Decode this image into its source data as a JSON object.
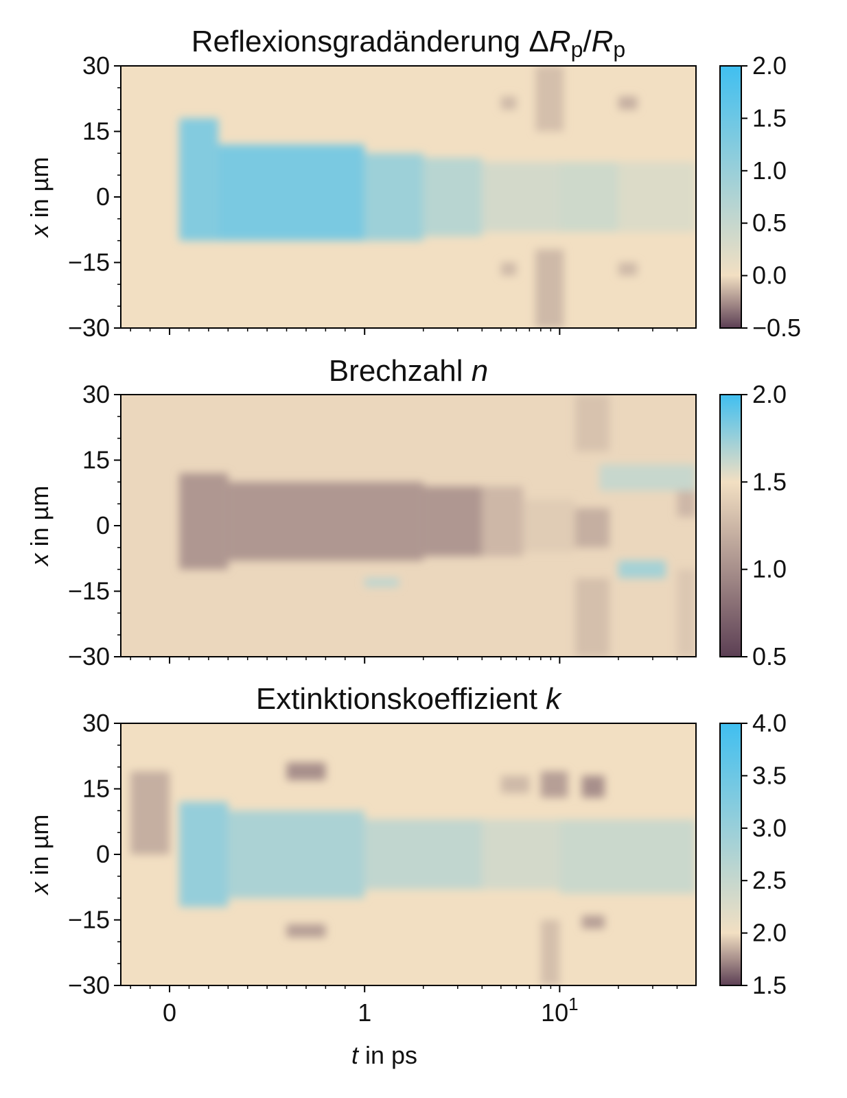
{
  "chart_data": [
    {
      "type": "heatmap",
      "title_prefix": "Reflexionsgradänderung Δ",
      "title_var": "R",
      "title_sub": "p",
      "title_slash": "/",
      "ylabel_var": "x",
      "ylabel_rest": " in µm",
      "ylim": [
        -30,
        30
      ],
      "yticks": [
        "30",
        "15",
        "0",
        "−15",
        "−30"
      ],
      "x_scale": "symlog",
      "colorbar": {
        "range": [
          -0.5,
          2.0
        ],
        "ticks": [
          "2.0",
          "1.5",
          "1.0",
          "0.5",
          "0.0",
          "−0.5"
        ],
        "colors": {
          "low": "#5c3f54",
          "mid": "#f2dfc2",
          "high": "#40bff0"
        },
        "mid_value": 0.0
      },
      "background_value": 0.0,
      "features": [
        {
          "t": [
            0.05,
            0.25
          ],
          "x": [
            -10,
            18
          ],
          "value": 1.25
        },
        {
          "t": [
            0.25,
            1.0
          ],
          "x": [
            -10,
            12
          ],
          "value": 1.35
        },
        {
          "t": [
            1.0,
            2.0
          ],
          "x": [
            -10,
            10
          ],
          "value": 0.95
        },
        {
          "t": [
            2.0,
            4.0
          ],
          "x": [
            -9,
            9
          ],
          "value": 0.65
        },
        {
          "t": [
            4.0,
            10.0
          ],
          "x": [
            -8,
            8
          ],
          "value": 0.35
        },
        {
          "t": [
            10.0,
            20.0
          ],
          "x": [
            -8,
            8
          ],
          "value": 0.4
        },
        {
          "t": [
            20.0,
            50.0
          ],
          "x": [
            -8,
            8
          ],
          "value": 0.25
        },
        {
          "t": [
            7.5,
            10.5
          ],
          "x": [
            -30,
            -12
          ],
          "value": -0.12
        },
        {
          "t": [
            7.5,
            10.5
          ],
          "x": [
            15,
            30
          ],
          "value": -0.1
        },
        {
          "t": [
            5.0,
            6.0
          ],
          "x": [
            20,
            23
          ],
          "value": -0.12
        },
        {
          "t": [
            5.0,
            6.0
          ],
          "x": [
            -18,
            -15
          ],
          "value": -0.12
        },
        {
          "t": [
            20.0,
            25.0
          ],
          "x": [
            20,
            23
          ],
          "value": -0.15
        },
        {
          "t": [
            20.0,
            25.0
          ],
          "x": [
            -18,
            -15
          ],
          "value": -0.12
        }
      ]
    },
    {
      "type": "heatmap",
      "title_prefix": "Brechzahl ",
      "title_var": "n",
      "ylabel_var": "x",
      "ylabel_rest": " in µm",
      "ylim": [
        -30,
        30
      ],
      "yticks": [
        "30",
        "15",
        "0",
        "−15",
        "−30"
      ],
      "x_scale": "symlog",
      "colorbar": {
        "range": [
          0.5,
          2.0
        ],
        "ticks": [
          "2.0",
          "1.5",
          "1.0",
          "0.5"
        ],
        "colors": {
          "low": "#5c3f54",
          "mid": "#f2dfc2",
          "high": "#40bff0"
        },
        "mid_value": 1.5
      },
      "background_value": 1.45,
      "features": [
        {
          "t": [
            0.05,
            0.3
          ],
          "x": [
            -10,
            12
          ],
          "value": 1.05
        },
        {
          "t": [
            0.3,
            2.0
          ],
          "x": [
            -8,
            10
          ],
          "value": 1.05
        },
        {
          "t": [
            2.0,
            4.0
          ],
          "x": [
            -7,
            9
          ],
          "value": 1.05
        },
        {
          "t": [
            4.0,
            6.5
          ],
          "x": [
            -7,
            9
          ],
          "value": 1.25
        },
        {
          "t": [
            6.5,
            12.0
          ],
          "x": [
            -6,
            6
          ],
          "value": 1.38
        },
        {
          "t": [
            12.0,
            18.0
          ],
          "x": [
            -5,
            4
          ],
          "value": 1.2
        },
        {
          "t": [
            12.0,
            18.0
          ],
          "x": [
            -30,
            -12
          ],
          "value": 1.3
        },
        {
          "t": [
            12.0,
            18.0
          ],
          "x": [
            17,
            30
          ],
          "value": 1.32
        },
        {
          "t": [
            16.0,
            50.0
          ],
          "x": [
            8,
            14
          ],
          "value": 1.62
        },
        {
          "t": [
            20.0,
            35.0
          ],
          "x": [
            -12,
            -8
          ],
          "value": 1.72
        },
        {
          "t": [
            1.0,
            1.5
          ],
          "x": [
            -14,
            -12
          ],
          "value": 1.65
        },
        {
          "t": [
            40.0,
            50.0
          ],
          "x": [
            2,
            8
          ],
          "value": 1.25
        },
        {
          "t": [
            40.0,
            50.0
          ],
          "x": [
            -30,
            -10
          ],
          "value": 1.35
        }
      ]
    },
    {
      "type": "heatmap",
      "title_prefix": "Extinktionskoeffizient ",
      "title_var": "k",
      "xlabel_var": "t",
      "xlabel_rest": " in ps",
      "ylabel_var": "x",
      "ylabel_rest": " in µm",
      "ylim": [
        -30,
        30
      ],
      "yticks": [
        "30",
        "15",
        "0",
        "−15",
        "−30"
      ],
      "x_scale": "symlog",
      "xticks": [
        "0",
        "1",
        "10"
      ],
      "colorbar": {
        "range": [
          1.5,
          4.0
        ],
        "ticks": [
          "4.0",
          "3.5",
          "3.0",
          "2.5",
          "2.0",
          "1.5"
        ],
        "colors": {
          "low": "#5c3f54",
          "mid": "#f2dfc2",
          "high": "#40bff0"
        },
        "mid_value": 2.0
      },
      "background_value": 2.0,
      "features": [
        {
          "t": [
            0.05,
            0.3
          ],
          "x": [
            -12,
            12
          ],
          "value": 3.05
        },
        {
          "t": [
            0.3,
            1.0
          ],
          "x": [
            -10,
            10
          ],
          "value": 2.8
        },
        {
          "t": [
            1.0,
            4.0
          ],
          "x": [
            -8,
            8
          ],
          "value": 2.55
        },
        {
          "t": [
            4.0,
            10.0
          ],
          "x": [
            -8,
            8
          ],
          "value": 2.35
        },
        {
          "t": [
            10.0,
            50.0
          ],
          "x": [
            -9,
            8
          ],
          "value": 2.45
        },
        {
          "t": [
            -0.2,
            0.0
          ],
          "x": [
            0,
            19
          ],
          "value": 1.85
        },
        {
          "t": [
            8.0,
            11.0
          ],
          "x": [
            13,
            19
          ],
          "value": 1.8
        },
        {
          "t": [
            13.0,
            17.0
          ],
          "x": [
            13,
            18
          ],
          "value": 1.75
        },
        {
          "t": [
            5.0,
            7.0
          ],
          "x": [
            14,
            18
          ],
          "value": 1.88
        },
        {
          "t": [
            8.0,
            10.0
          ],
          "x": [
            -30,
            -15
          ],
          "value": 1.9
        },
        {
          "t": [
            13.0,
            17.0
          ],
          "x": [
            -17,
            -14
          ],
          "value": 1.8
        },
        {
          "t": [
            0.6,
            0.8
          ],
          "x": [
            17,
            21
          ],
          "value": 1.75
        },
        {
          "t": [
            0.6,
            0.8
          ],
          "x": [
            -19,
            -16
          ],
          "value": 1.8
        }
      ]
    }
  ]
}
